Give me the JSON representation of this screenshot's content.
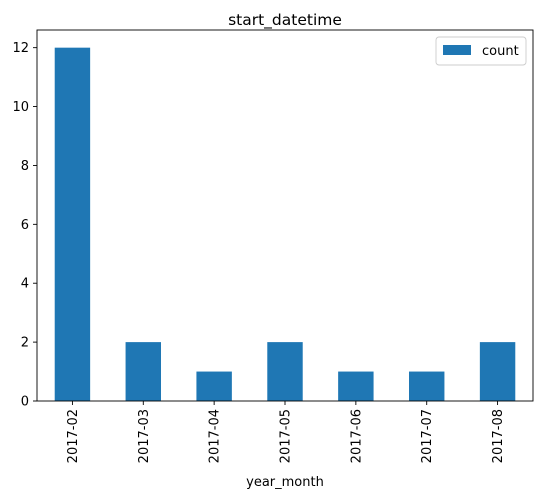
{
  "chart_data": {
    "type": "bar",
    "title": "start_datetime",
    "xlabel": "year_month",
    "ylabel": "",
    "categories": [
      "2017-02",
      "2017-03",
      "2017-04",
      "2017-05",
      "2017-06",
      "2017-07",
      "2017-08"
    ],
    "series": [
      {
        "name": "count",
        "values": [
          12,
          2,
          1,
          2,
          1,
          1,
          2
        ],
        "color": "#1f77b4"
      }
    ],
    "ylim": [
      0,
      12.6
    ],
    "yticks": [
      0,
      2,
      4,
      6,
      8,
      10,
      12
    ],
    "grid": false,
    "legend": "top-right"
  }
}
